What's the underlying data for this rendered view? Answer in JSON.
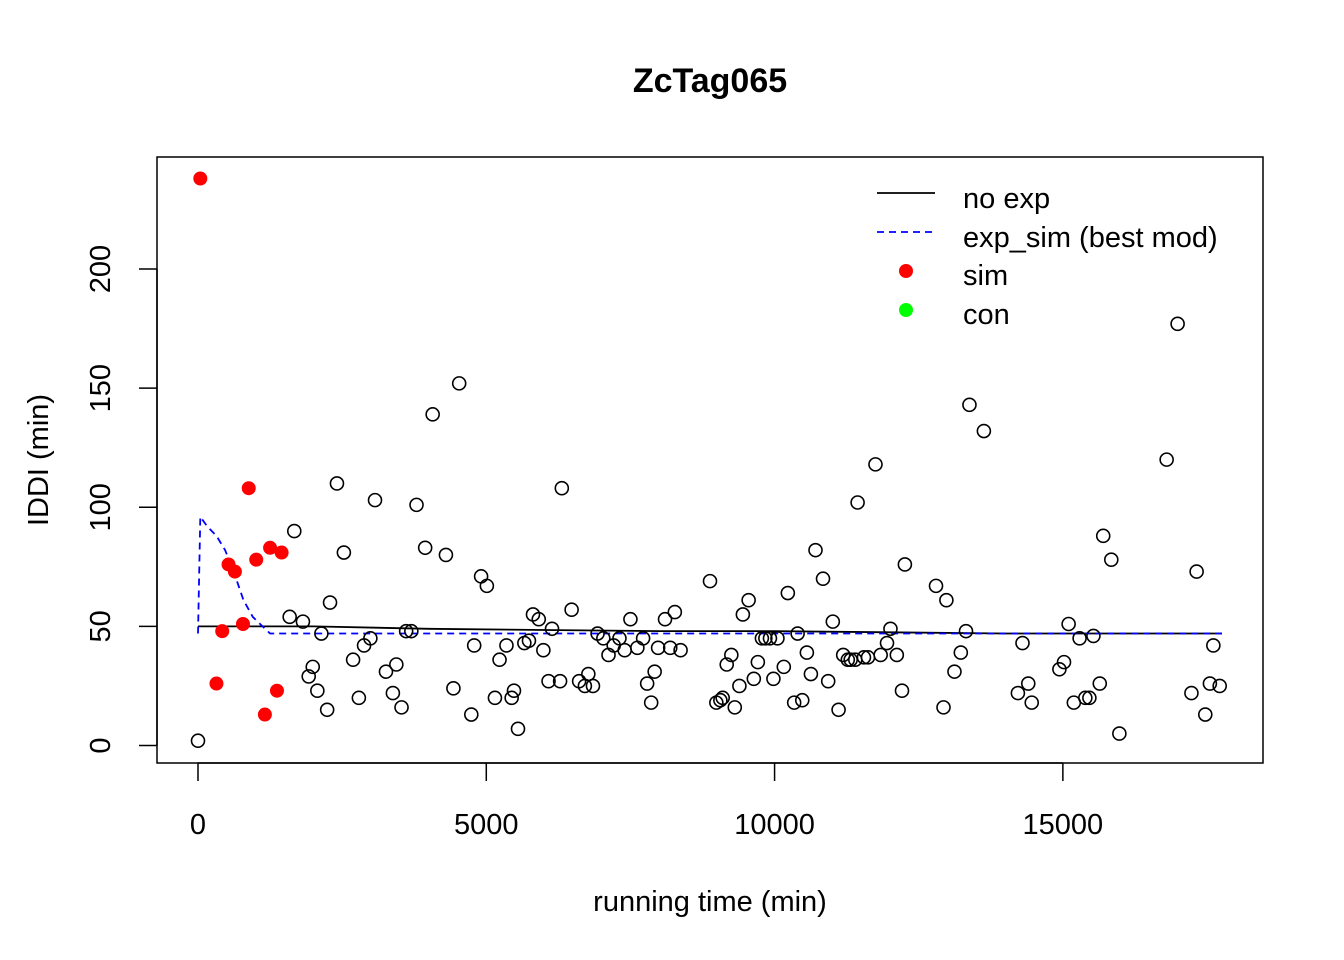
{
  "chart_data": {
    "type": "scatter",
    "title": "ZcTag065",
    "xlabel": "running time (min)",
    "ylabel": "IDDI (min)",
    "xlim": [
      0,
      17760
    ],
    "ylim": [
      0,
      238
    ],
    "xticks": [
      0,
      5000,
      10000,
      15000
    ],
    "xtick_labels": [
      "0",
      "5000",
      "10000",
      "15000"
    ],
    "yticks": [
      0,
      50,
      100,
      150,
      200
    ],
    "ytick_labels": [
      "0",
      "50",
      "100",
      "150",
      "200"
    ],
    "grid": false,
    "legend_position": "top-right",
    "legend": [
      {
        "label": "no exp",
        "kind": "line",
        "color": "#000000",
        "dash": "solid"
      },
      {
        "label": "exp_sim  (best mod)",
        "kind": "line",
        "color": "#0000ff",
        "dash": "dashed"
      },
      {
        "label": "sim",
        "kind": "point",
        "color": "#ff0000"
      },
      {
        "label": "con",
        "kind": "point",
        "color": "#00ff00"
      }
    ],
    "series": [
      {
        "name": "sim",
        "style": "filled",
        "color": "#ff0000",
        "points": [
          [
            40,
            238
          ],
          [
            320,
            26
          ],
          [
            420,
            48
          ],
          [
            530,
            76
          ],
          [
            640,
            73
          ],
          [
            780,
            51
          ],
          [
            880,
            108
          ],
          [
            1010,
            78
          ],
          [
            1160,
            13
          ],
          [
            1250,
            83
          ],
          [
            1370,
            23
          ],
          [
            1450,
            81
          ]
        ]
      },
      {
        "name": "",
        "style": "open",
        "color": "#000000",
        "points": [
          [
            0,
            2
          ],
          [
            1590,
            54
          ],
          [
            1670,
            90
          ],
          [
            1820,
            52
          ],
          [
            1920,
            29
          ],
          [
            1990,
            33
          ],
          [
            2070,
            23
          ],
          [
            2140,
            47
          ],
          [
            2240,
            15
          ],
          [
            2290,
            60
          ],
          [
            2410,
            110
          ],
          [
            2530,
            81
          ],
          [
            2690,
            36
          ],
          [
            2790,
            20
          ],
          [
            2880,
            42
          ],
          [
            2990,
            45
          ],
          [
            3070,
            103
          ],
          [
            3260,
            31
          ],
          [
            3380,
            22
          ],
          [
            3440,
            34
          ],
          [
            3530,
            16
          ],
          [
            3610,
            48
          ],
          [
            3700,
            48
          ],
          [
            3790,
            101
          ],
          [
            3940,
            83
          ],
          [
            4070,
            139
          ],
          [
            4300,
            80
          ],
          [
            4430,
            24
          ],
          [
            4530,
            152
          ],
          [
            4740,
            13
          ],
          [
            4790,
            42
          ],
          [
            4910,
            71
          ],
          [
            5010,
            67
          ],
          [
            5150,
            20
          ],
          [
            5230,
            36
          ],
          [
            5350,
            42
          ],
          [
            5440,
            20
          ],
          [
            5480,
            23
          ],
          [
            5550,
            7
          ],
          [
            5660,
            43
          ],
          [
            5740,
            44
          ],
          [
            5810,
            55
          ],
          [
            5910,
            53
          ],
          [
            5990,
            40
          ],
          [
            6080,
            27
          ],
          [
            6140,
            49
          ],
          [
            6280,
            27
          ],
          [
            6310,
            108
          ],
          [
            6480,
            57
          ],
          [
            6610,
            27
          ],
          [
            6710,
            25
          ],
          [
            6770,
            30
          ],
          [
            6850,
            25
          ],
          [
            6930,
            47
          ],
          [
            7030,
            45
          ],
          [
            7120,
            38
          ],
          [
            7210,
            42
          ],
          [
            7310,
            45
          ],
          [
            7400,
            40
          ],
          [
            7500,
            53
          ],
          [
            7620,
            41
          ],
          [
            7720,
            45
          ],
          [
            7790,
            26
          ],
          [
            7860,
            18
          ],
          [
            7920,
            31
          ],
          [
            7980,
            41
          ],
          [
            8100,
            53
          ],
          [
            8190,
            41
          ],
          [
            8270,
            56
          ],
          [
            8370,
            40
          ],
          [
            8880,
            69
          ],
          [
            8990,
            18
          ],
          [
            9060,
            19
          ],
          [
            9100,
            20
          ],
          [
            9170,
            34
          ],
          [
            9250,
            38
          ],
          [
            9310,
            16
          ],
          [
            9390,
            25
          ],
          [
            9450,
            55
          ],
          [
            9550,
            61
          ],
          [
            9640,
            28
          ],
          [
            9710,
            35
          ],
          [
            9780,
            45
          ],
          [
            9840,
            45
          ],
          [
            9920,
            45
          ],
          [
            9980,
            28
          ],
          [
            10050,
            45
          ],
          [
            10160,
            33
          ],
          [
            10230,
            64
          ],
          [
            10340,
            18
          ],
          [
            10400,
            47
          ],
          [
            10480,
            19
          ],
          [
            10560,
            39
          ],
          [
            10630,
            30
          ],
          [
            10710,
            82
          ],
          [
            10840,
            70
          ],
          [
            10930,
            27
          ],
          [
            11010,
            52
          ],
          [
            11110,
            15
          ],
          [
            11190,
            38
          ],
          [
            11270,
            36
          ],
          [
            11320,
            36
          ],
          [
            11400,
            36
          ],
          [
            11440,
            102
          ],
          [
            11550,
            37
          ],
          [
            11620,
            37
          ],
          [
            11750,
            118
          ],
          [
            11840,
            38
          ],
          [
            11950,
            43
          ],
          [
            12010,
            49
          ],
          [
            12120,
            38
          ],
          [
            12210,
            23
          ],
          [
            12260,
            76
          ],
          [
            12800,
            67
          ],
          [
            12930,
            16
          ],
          [
            12980,
            61
          ],
          [
            13120,
            31
          ],
          [
            13230,
            39
          ],
          [
            13320,
            48
          ],
          [
            13380,
            143
          ],
          [
            13630,
            132
          ],
          [
            14220,
            22
          ],
          [
            14300,
            43
          ],
          [
            14400,
            26
          ],
          [
            14460,
            18
          ],
          [
            14940,
            32
          ],
          [
            15020,
            35
          ],
          [
            15100,
            51
          ],
          [
            15190,
            18
          ],
          [
            15290,
            45
          ],
          [
            15390,
            20
          ],
          [
            15460,
            20
          ],
          [
            15530,
            46
          ],
          [
            15640,
            26
          ],
          [
            15700,
            88
          ],
          [
            15840,
            78
          ],
          [
            15980,
            5
          ],
          [
            16800,
            120
          ],
          [
            16990,
            177
          ],
          [
            17230,
            22
          ],
          [
            17320,
            73
          ],
          [
            17470,
            13
          ],
          [
            17550,
            26
          ],
          [
            17610,
            42
          ],
          [
            17720,
            25
          ]
        ]
      }
    ],
    "lines": [
      {
        "name": "no exp",
        "color": "#000000",
        "dash": "solid",
        "points": [
          [
            0,
            50
          ],
          [
            2000,
            50
          ],
          [
            4000,
            49
          ],
          [
            6000,
            48.5
          ],
          [
            8000,
            48
          ],
          [
            10000,
            48
          ],
          [
            12000,
            47.5
          ],
          [
            14000,
            47
          ],
          [
            17760,
            47
          ]
        ]
      },
      {
        "name": "exp_sim  (best mod)",
        "color": "#0000ff",
        "dash": "dashed",
        "points": [
          [
            0,
            47
          ],
          [
            40,
            96
          ],
          [
            160,
            92
          ],
          [
            320,
            88
          ],
          [
            470,
            82
          ],
          [
            620,
            73
          ],
          [
            790,
            61
          ],
          [
            950,
            54
          ],
          [
            1120,
            50
          ],
          [
            1250,
            47
          ],
          [
            2000,
            47
          ],
          [
            6000,
            47
          ],
          [
            10000,
            47
          ],
          [
            14000,
            47
          ],
          [
            17760,
            47
          ]
        ]
      }
    ]
  }
}
